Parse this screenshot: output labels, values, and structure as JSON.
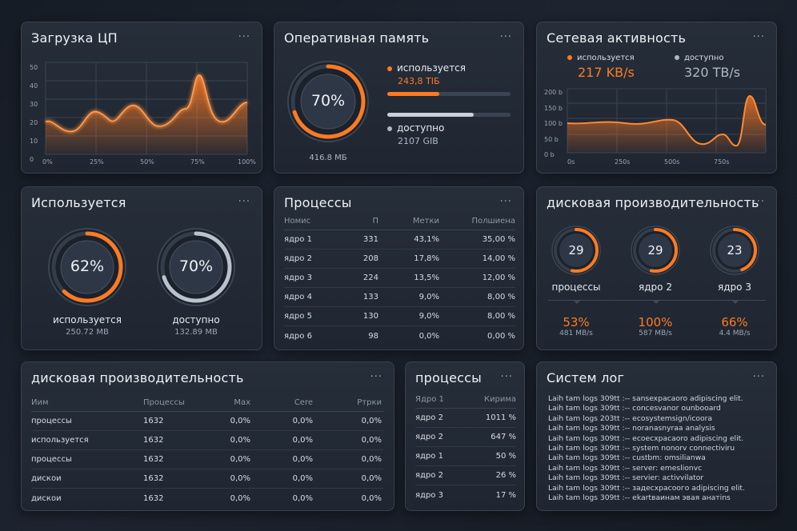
{
  "cpu": {
    "title": "Загрузка ЦП",
    "more": "···",
    "yticks": [
      "50",
      "40",
      "30",
      "20",
      "10",
      "0"
    ],
    "xticks": [
      "0%",
      "25%",
      "50%",
      "75%",
      "100%"
    ]
  },
  "ram": {
    "title": "Оперативная память",
    "more": "···",
    "gauge": "70%",
    "total": "416.8 МБ",
    "used_label": "используется",
    "used_value": "243,8 TIБ",
    "used_frac": 0.42,
    "free_label": "доступно",
    "free_value": "2107 GIB",
    "free_frac": 0.7
  },
  "net": {
    "title": "Сетевая активность",
    "more": "···",
    "used_label": "используется",
    "used_value": "217 KB/s",
    "free_label": "доступно",
    "free_value": "320 TB/s",
    "yticks": [
      "200 b",
      "150 b",
      "100 b",
      "50 b",
      "0 b"
    ],
    "xticks": [
      "0s",
      "250s",
      "500s",
      "750s"
    ]
  },
  "usage": {
    "title": "Используется",
    "more": "···",
    "g1": {
      "value": "62%",
      "label": "используется",
      "sub": "250.72 MB",
      "frac": 0.62
    },
    "g2": {
      "value": "70%",
      "label": "доступно",
      "sub": "132.89 MB",
      "frac": 0.7
    }
  },
  "proc": {
    "title": "Процессы",
    "more": "···",
    "headers": [
      "Номис",
      "П",
      "Метки",
      "Полшиена"
    ],
    "rows": [
      [
        "ядро 1",
        "331",
        "43,1%",
        "35,00 %"
      ],
      [
        "ядро 2",
        "208",
        "17,8%",
        "14,00 %"
      ],
      [
        "ядро 3",
        "224",
        "13,5%",
        "12,00 %"
      ],
      [
        "ядро 4",
        "133",
        "9,0%",
        "8,00 %"
      ],
      [
        "ядро 5",
        "130",
        "9,0%",
        "8,00 %"
      ],
      [
        "ядро 6",
        "98",
        "0,0%",
        "0,00 %"
      ]
    ]
  },
  "disk": {
    "title": "дисковая производительность",
    "more": "···",
    "gauges": [
      {
        "value": "29",
        "label": "процессы",
        "pct": "53%",
        "rate": "481 MB/s"
      },
      {
        "value": "29",
        "label": "ядро 2",
        "pct": "100%",
        "rate": "587 MB/s"
      },
      {
        "value": "23",
        "label": "ядро 3",
        "pct": "66%",
        "rate": "4.4 MB/s"
      }
    ]
  },
  "disk2": {
    "title": "дисковая производительность",
    "more": "···",
    "headers": [
      "Иим",
      "Процессы",
      "Max",
      "Cere",
      "Ртрки"
    ],
    "rows": [
      [
        "процессы",
        "1632",
        "0,0%",
        "0,0%",
        "0,0%"
      ],
      [
        "используется",
        "1632",
        "0,0%",
        "0,0%",
        "0,0%"
      ],
      [
        "процессы",
        "1632",
        "0,0%",
        "0,0%",
        "0,0%"
      ],
      [
        "дискои",
        "1632",
        "0,0%",
        "0,0%",
        "0,0%"
      ],
      [
        "дискои",
        "1632",
        "0,0%",
        "0,0%",
        "0,0%"
      ]
    ]
  },
  "proc2": {
    "title": "процессы",
    "more": "···",
    "headers": [
      "Ядро 1",
      "Кирима"
    ],
    "rows": [
      [
        "ядро 2",
        "1011 %"
      ],
      [
        "ядро 2",
        "647 %"
      ],
      [
        "ядро 1",
        "50 %"
      ],
      [
        "ядро 2",
        "26 %"
      ],
      [
        "ядро 3",
        "17 %"
      ]
    ]
  },
  "syslog": {
    "title": "Систем лог",
    "more": "···",
    "lines": [
      "Laih tam logs 309tt :-- sansexpacaoro adipiscing elit.",
      "Laih tam logs 309tt :-- concesvanor ounbooard",
      "Laih tam logs 203tt :-- ecosystemsign/icoora",
      "Laih tam logs 309tt :-- noranasnyraa analysis",
      "Laih tam logs 309tt :-- ecoecxpacaoro adipiscing elit.",
      "Laih tam logs 309tt :-- system nonorv connectiviru",
      "Laih tam logs 309tt :-- custbm: omsilianwa",
      "Laih tam logs 309tt :-- server: emeslionvc",
      "Laih tam logs 309tt :-- servier: activvilator",
      "Laih tam logs 309tt :-- задесхрасоого adipiscing elit.",
      "Laih tam logs 309tt :-- ekartваинам эвая анатins"
    ]
  },
  "colors": {
    "accent": "#ff7a22",
    "muted": "#aeb8c4"
  }
}
